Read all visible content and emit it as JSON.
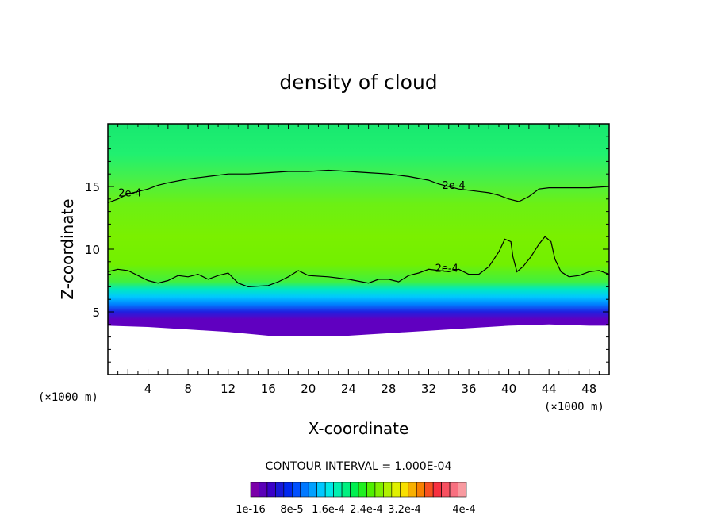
{
  "chart_data": {
    "type": "heatmap",
    "title": "density of cloud",
    "xlabel": "X-coordinate",
    "ylabel": "Z-coordinate",
    "x_unit": "(×1000 m)",
    "y_unit": "(×1000 m)",
    "xlim": [
      0,
      50
    ],
    "ylim": [
      0,
      20
    ],
    "x_ticks": [
      4,
      8,
      12,
      16,
      20,
      24,
      28,
      32,
      36,
      40,
      44,
      48
    ],
    "y_ticks": [
      5,
      10,
      15
    ],
    "contour_interval_text": "CONTOUR INTERVAL = 1.000E-04",
    "contour_label": "2e-4",
    "contour_label_positions": [
      [
        2.2,
        14.2
      ],
      [
        34.5,
        14.8
      ],
      [
        33.8,
        8.2
      ]
    ],
    "colorbar": {
      "labels": [
        "1e-16",
        "8e-5",
        "1.6e-4",
        "2.4e-4",
        "3.2e-4",
        "4e-4"
      ],
      "colors": [
        "#7a00a8",
        "#5a00b8",
        "#3a00c8",
        "#1818d8",
        "#0028f0",
        "#0050ff",
        "#0078ff",
        "#00a0ff",
        "#00c8ff",
        "#00e8e8",
        "#00f0b0",
        "#00f080",
        "#00f050",
        "#20f020",
        "#50f000",
        "#80f000",
        "#b0f000",
        "#e0f000",
        "#f8e000",
        "#f8b000",
        "#f88000",
        "#f85020",
        "#f83040",
        "#f85060",
        "#f87080",
        "#f89aa0"
      ]
    },
    "contour_2e4_upper": [
      [
        0,
        13.7
      ],
      [
        1,
        14.0
      ],
      [
        2,
        14.4
      ],
      [
        4,
        14.8
      ],
      [
        5,
        15.1
      ],
      [
        6,
        15.3
      ],
      [
        8,
        15.6
      ],
      [
        10,
        15.8
      ],
      [
        12,
        16.0
      ],
      [
        14,
        16.0
      ],
      [
        16,
        16.1
      ],
      [
        18,
        16.2
      ],
      [
        20,
        16.2
      ],
      [
        22,
        16.3
      ],
      [
        24,
        16.2
      ],
      [
        26,
        16.1
      ],
      [
        28,
        16.0
      ],
      [
        30,
        15.8
      ],
      [
        32,
        15.5
      ],
      [
        33,
        15.2
      ],
      [
        35,
        14.8
      ],
      [
        37,
        14.6
      ],
      [
        38,
        14.5
      ],
      [
        39,
        14.3
      ],
      [
        40,
        14.0
      ],
      [
        41,
        13.8
      ],
      [
        42,
        14.2
      ],
      [
        43,
        14.8
      ],
      [
        44,
        14.9
      ],
      [
        46,
        14.9
      ],
      [
        48,
        14.9
      ],
      [
        50,
        15.0
      ]
    ],
    "contour_2e4_lower": [
      [
        0,
        8.2
      ],
      [
        1,
        8.4
      ],
      [
        2,
        8.3
      ],
      [
        3,
        7.9
      ],
      [
        4,
        7.5
      ],
      [
        5,
        7.3
      ],
      [
        6,
        7.5
      ],
      [
        7,
        7.9
      ],
      [
        8,
        7.8
      ],
      [
        9,
        8.0
      ],
      [
        10,
        7.6
      ],
      [
        11,
        7.9
      ],
      [
        12,
        8.1
      ],
      [
        13,
        7.3
      ],
      [
        14,
        7.0
      ],
      [
        16,
        7.1
      ],
      [
        17,
        7.4
      ],
      [
        18,
        7.8
      ],
      [
        19,
        8.3
      ],
      [
        20,
        7.9
      ],
      [
        22,
        7.8
      ],
      [
        24,
        7.6
      ],
      [
        26,
        7.3
      ],
      [
        27,
        7.6
      ],
      [
        28,
        7.6
      ],
      [
        29,
        7.4
      ],
      [
        30,
        7.9
      ],
      [
        31,
        8.1
      ],
      [
        32,
        8.4
      ],
      [
        34,
        8.2
      ],
      [
        35,
        8.4
      ],
      [
        36,
        8.0
      ],
      [
        37,
        8.0
      ],
      [
        38,
        8.6
      ],
      [
        39,
        9.8
      ],
      [
        39.6,
        10.8
      ],
      [
        40.2,
        10.6
      ],
      [
        40.4,
        9.4
      ],
      [
        40.8,
        8.2
      ],
      [
        41.4,
        8.6
      ],
      [
        42.2,
        9.4
      ],
      [
        43,
        10.4
      ],
      [
        43.6,
        11.0
      ],
      [
        44.2,
        10.6
      ],
      [
        44.6,
        9.2
      ],
      [
        45.2,
        8.2
      ],
      [
        46,
        7.8
      ],
      [
        47,
        7.9
      ],
      [
        48,
        8.2
      ],
      [
        49,
        8.3
      ],
      [
        50,
        8.0
      ]
    ]
  }
}
